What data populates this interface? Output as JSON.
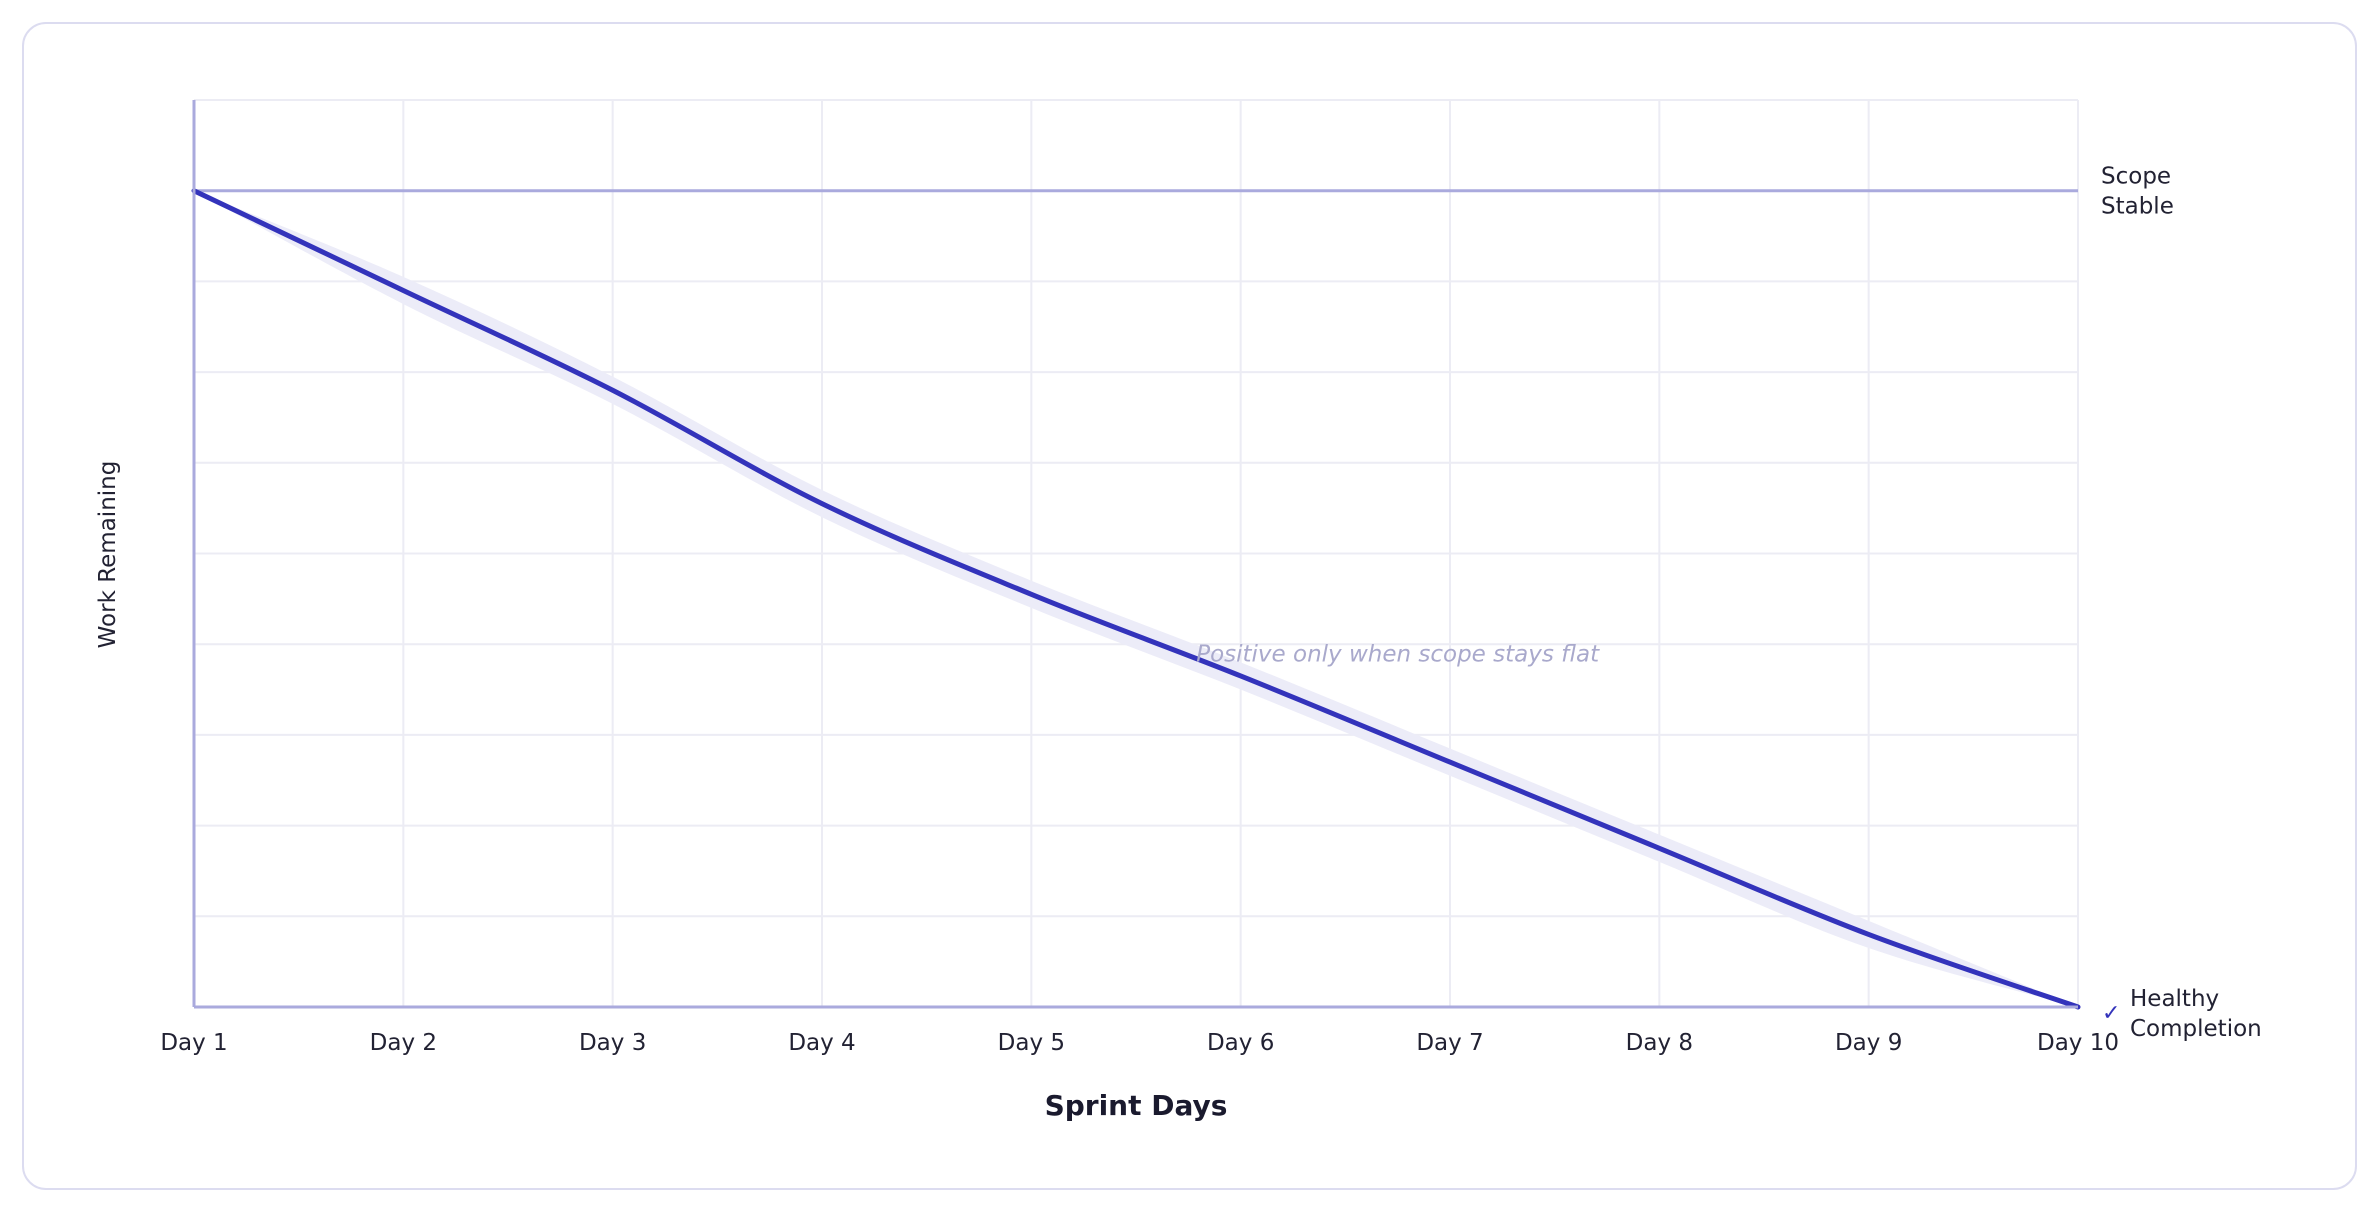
{
  "chart_data": {
    "type": "line",
    "xlabel": "Sprint Days",
    "ylabel": "Work Remaining",
    "categories": [
      "Day 1",
      "Day 2",
      "Day 3",
      "Day 4",
      "Day 5",
      "Day 6",
      "Day 7",
      "Day 8",
      "Day 9",
      "Day 10"
    ],
    "ylim": [
      0,
      10
    ],
    "grid": true,
    "series": [
      {
        "values": [
          9.0,
          7.9,
          6.8,
          5.55,
          4.55,
          3.65,
          2.7,
          1.75,
          0.8,
          0.0
        ]
      }
    ],
    "band": {
      "half_width": 0.15
    },
    "reference_line": {
      "value": 9.0,
      "label_lines": [
        "Scope",
        "Stable"
      ]
    },
    "end_marker": {
      "symbol": "✓",
      "label_lines": [
        "Healthy",
        "Completion"
      ]
    },
    "annotation": {
      "text": "Positive only when scope stays flat",
      "x_index": 5.75,
      "y": 3.9
    },
    "colors": {
      "line": "#3333bb",
      "band": "#ececf8",
      "reference": "#aaaadd",
      "axis": "#aaaadd",
      "grid": "#ececf4",
      "annotation": "#a9a9cc"
    }
  }
}
